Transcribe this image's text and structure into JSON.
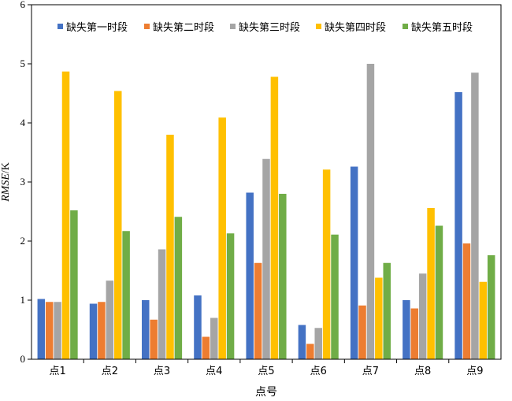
{
  "chart_data": {
    "type": "bar",
    "ylabel_italic": "RMSE",
    "ylabel_unit": "/K",
    "xlabel": "点号",
    "categories": [
      "点1",
      "点2",
      "点3",
      "点4",
      "点5",
      "点6",
      "点7",
      "点8",
      "点9"
    ],
    "ylim": [
      0,
      6
    ],
    "yticks": [
      "0",
      "1",
      "2",
      "3",
      "4",
      "5",
      "6"
    ],
    "grid": false,
    "legend": "top",
    "series": [
      {
        "name": "缺失第一时段",
        "color": "#4472C4",
        "values": [
          1.02,
          0.94,
          1.0,
          1.08,
          2.82,
          0.58,
          3.26,
          1.0,
          4.52
        ]
      },
      {
        "name": "缺失第二时段",
        "color": "#ED7D31",
        "values": [
          0.97,
          0.97,
          0.67,
          0.38,
          1.63,
          0.26,
          0.91,
          0.86,
          1.96
        ]
      },
      {
        "name": "缺失第三时段",
        "color": "#A5A5A5",
        "values": [
          0.97,
          1.33,
          1.86,
          0.7,
          3.39,
          0.53,
          5.0,
          1.45,
          4.85
        ]
      },
      {
        "name": "缺失第四时段",
        "color": "#FFC000",
        "values": [
          4.87,
          4.54,
          3.8,
          4.09,
          4.78,
          3.21,
          1.38,
          2.56,
          1.31
        ]
      },
      {
        "name": "缺失第五时段",
        "color": "#70AD47",
        "values": [
          2.52,
          2.17,
          2.41,
          2.13,
          2.8,
          2.11,
          1.63,
          2.26,
          1.76
        ]
      }
    ]
  }
}
